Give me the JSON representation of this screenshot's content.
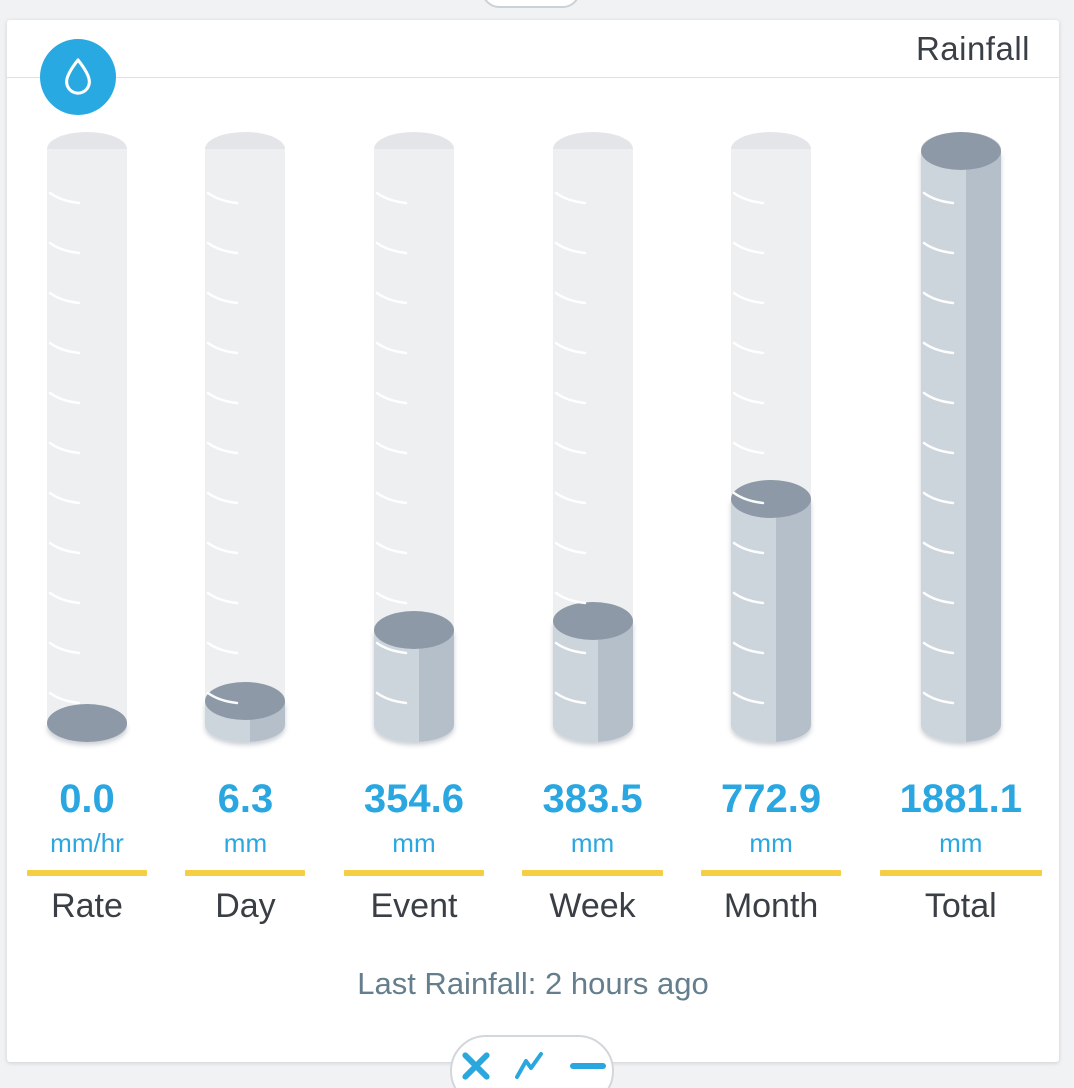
{
  "card": {
    "title": "Rainfall",
    "footer": "Last Rainfall: 2 hours ago"
  },
  "chart_data": {
    "type": "bar",
    "subtype": "cylinder-gauges",
    "title": "Rainfall",
    "categories": [
      "Rate",
      "Day",
      "Event",
      "Week",
      "Month",
      "Total"
    ],
    "values": [
      0.0,
      6.3,
      354.6,
      383.5,
      772.9,
      1881.1
    ],
    "value_labels": [
      "0.0",
      "6.3",
      "354.6",
      "383.5",
      "772.9",
      "1881.1"
    ],
    "units": [
      "mm/hr",
      "mm",
      "mm",
      "mm",
      "mm",
      "mm"
    ],
    "scale_max": 1881.1,
    "ticks_per_cylinder": 11,
    "legend": "none",
    "annotation": "Last Rainfall: 2 hours ago"
  },
  "toolbar": {
    "buttons": [
      {
        "name": "close",
        "icon": "x-icon"
      },
      {
        "name": "chart",
        "icon": "line-chart-icon"
      },
      {
        "name": "minimize",
        "icon": "dash-icon"
      }
    ]
  },
  "colors": {
    "accent_blue": "#2aa7df",
    "value_text": "#2aa7e0",
    "underline_yellow": "#f6ce44",
    "fill_top": "#8d99a7",
    "fill_light": "#ccd4dc",
    "fill_dark": "#b5bfc9",
    "tube_body": "#eeeff0",
    "tube_top_ellipse": "#e4e5e8",
    "label_text": "#3a3f46",
    "footer_text": "#647e8d",
    "badge_blue": "#29a9e1"
  }
}
